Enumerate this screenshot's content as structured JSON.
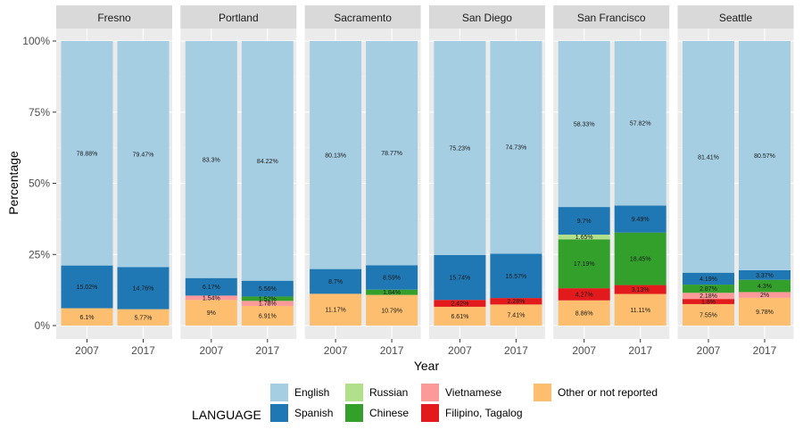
{
  "chart_data": {
    "type": "bar",
    "stacked": true,
    "percent": true,
    "xlabel": "Year",
    "ylabel": "Percentage",
    "ylim": [
      0,
      1
    ],
    "yticks": [
      "0%",
      "25%",
      "50%",
      "75%",
      "100%"
    ],
    "legend": {
      "title": "LANGUAGE",
      "position": "bottom"
    },
    "series": [
      {
        "name": "Other or not reported",
        "color": "#FDBF6F"
      },
      {
        "name": "Filipino, Tagalog",
        "color": "#E31A1C"
      },
      {
        "name": "Vietnamese",
        "color": "#FB9A99"
      },
      {
        "name": "Chinese",
        "color": "#33A02C"
      },
      {
        "name": "Russian",
        "color": "#B2DF8A"
      },
      {
        "name": "Spanish",
        "color": "#1F78B4"
      },
      {
        "name": "English",
        "color": "#A6CEE3"
      }
    ],
    "legend_order": [
      "English",
      "Spanish",
      "Russian",
      "Chinese",
      "Vietnamese",
      "Filipino, Tagalog",
      "Other or not reported"
    ],
    "panels": [
      {
        "city": "Fresno",
        "bars": [
          {
            "year": "2007",
            "segments": [
              {
                "series": "Other or not reported",
                "value": 6.1,
                "label": "6.1%"
              },
              {
                "series": "Spanish",
                "value": 15.02,
                "label": "15.02%"
              },
              {
                "series": "English",
                "value": 78.88,
                "label": "78.88%"
              }
            ]
          },
          {
            "year": "2017",
            "segments": [
              {
                "series": "Other or not reported",
                "value": 5.77,
                "label": "5.77%"
              },
              {
                "series": "Spanish",
                "value": 14.76,
                "label": "14.76%"
              },
              {
                "series": "English",
                "value": 79.47,
                "label": "79.47%"
              }
            ]
          }
        ]
      },
      {
        "city": "Portland",
        "bars": [
          {
            "year": "2007",
            "segments": [
              {
                "series": "Other or not reported",
                "value": 9,
                "label": "9%"
              },
              {
                "series": "Vietnamese",
                "value": 1.54,
                "label": "1.54%"
              },
              {
                "series": "Spanish",
                "value": 6.17,
                "label": "6.17%"
              },
              {
                "series": "English",
                "value": 83.3,
                "label": "83.3%"
              }
            ]
          },
          {
            "year": "2017",
            "segments": [
              {
                "series": "Other or not reported",
                "value": 6.91,
                "label": "6.91%"
              },
              {
                "series": "Vietnamese",
                "value": 1.78,
                "label": "1.78%"
              },
              {
                "series": "Chinese",
                "value": 1.52,
                "label": "1.52%"
              },
              {
                "series": "Spanish",
                "value": 5.56,
                "label": "5.56%"
              },
              {
                "series": "English",
                "value": 84.22,
                "label": "84.22%"
              }
            ]
          }
        ]
      },
      {
        "city": "Sacramento",
        "bars": [
          {
            "year": "2007",
            "segments": [
              {
                "series": "Other or not reported",
                "value": 11.17,
                "label": "11.17%"
              },
              {
                "series": "Spanish",
                "value": 8.7,
                "label": "8.7%"
              },
              {
                "series": "English",
                "value": 80.13,
                "label": "80.13%"
              }
            ]
          },
          {
            "year": "2017",
            "segments": [
              {
                "series": "Other or not reported",
                "value": 10.79,
                "label": "10.79%"
              },
              {
                "series": "Chinese",
                "value": 1.84,
                "label": "1.84%"
              },
              {
                "series": "Spanish",
                "value": 8.59,
                "label": "8.59%"
              },
              {
                "series": "English",
                "value": 78.77,
                "label": "78.77%"
              }
            ]
          }
        ]
      },
      {
        "city": "San Diego",
        "bars": [
          {
            "year": "2007",
            "segments": [
              {
                "series": "Other or not reported",
                "value": 6.61,
                "label": "6.61%"
              },
              {
                "series": "Filipino, Tagalog",
                "value": 2.42,
                "label": "2.42%"
              },
              {
                "series": "Spanish",
                "value": 15.74,
                "label": "15.74%"
              },
              {
                "series": "English",
                "value": 75.23,
                "label": "75.23%"
              }
            ]
          },
          {
            "year": "2017",
            "segments": [
              {
                "series": "Other or not reported",
                "value": 7.41,
                "label": "7.41%"
              },
              {
                "series": "Filipino, Tagalog",
                "value": 2.28,
                "label": "2.28%"
              },
              {
                "series": "Spanish",
                "value": 15.57,
                "label": "15.57%"
              },
              {
                "series": "English",
                "value": 74.73,
                "label": "74.73%"
              }
            ]
          }
        ]
      },
      {
        "city": "San Francisco",
        "bars": [
          {
            "year": "2007",
            "segments": [
              {
                "series": "Other or not reported",
                "value": 8.86,
                "label": "8.86%"
              },
              {
                "series": "Filipino, Tagalog",
                "value": 4.27,
                "label": "4.27%"
              },
              {
                "series": "Chinese",
                "value": 17.19,
                "label": "17.19%"
              },
              {
                "series": "Russian",
                "value": 1.65,
                "label": "1.65%"
              },
              {
                "series": "Spanish",
                "value": 9.7,
                "label": "9.7%"
              },
              {
                "series": "English",
                "value": 58.33,
                "label": "58.33%"
              }
            ]
          },
          {
            "year": "2017",
            "segments": [
              {
                "series": "Other or not reported",
                "value": 11.11,
                "label": "11.11%"
              },
              {
                "series": "Filipino, Tagalog",
                "value": 3.13,
                "label": "3.13%"
              },
              {
                "series": "Chinese",
                "value": 18.45,
                "label": "18.45%"
              },
              {
                "series": "Spanish",
                "value": 9.49,
                "label": "9.49%"
              },
              {
                "series": "English",
                "value": 57.82,
                "label": "57.82%"
              }
            ]
          }
        ]
      },
      {
        "city": "Seattle",
        "bars": [
          {
            "year": "2007",
            "segments": [
              {
                "series": "Other or not reported",
                "value": 7.55,
                "label": "7.55%"
              },
              {
                "series": "Filipino, Tagalog",
                "value": 1.8,
                "label": "1.8%"
              },
              {
                "series": "Vietnamese",
                "value": 2.18,
                "label": "2.18%"
              },
              {
                "series": "Chinese",
                "value": 2.87,
                "label": "2.87%"
              },
              {
                "series": "Spanish",
                "value": 4.19,
                "label": "4.19%"
              },
              {
                "series": "English",
                "value": 81.41,
                "label": "81.41%"
              }
            ]
          },
          {
            "year": "2017",
            "segments": [
              {
                "series": "Other or not reported",
                "value": 9.78,
                "label": "9.78%"
              },
              {
                "series": "Vietnamese",
                "value": 2,
                "label": "2%"
              },
              {
                "series": "Chinese",
                "value": 4.3,
                "label": "4.3%"
              },
              {
                "series": "Spanish",
                "value": 3.37,
                "label": "3.37%"
              },
              {
                "series": "English",
                "value": 80.57,
                "label": "80.57%"
              }
            ]
          }
        ]
      }
    ]
  }
}
